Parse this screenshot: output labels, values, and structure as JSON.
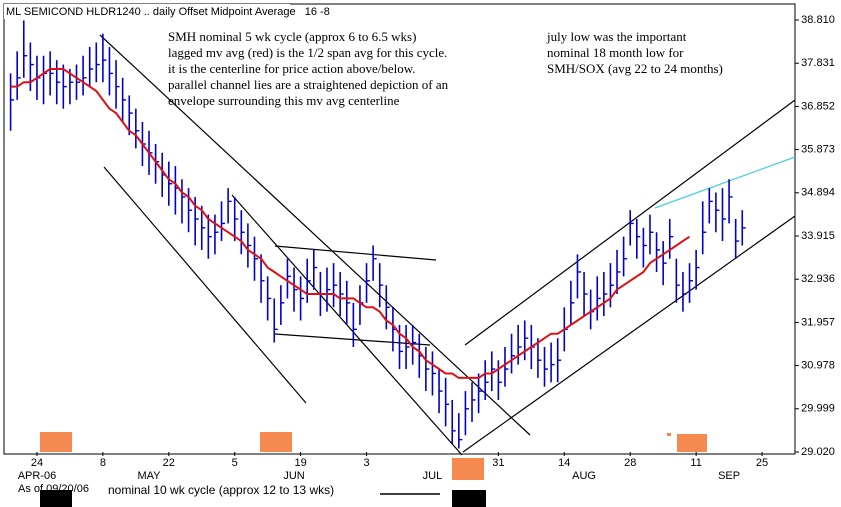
{
  "chart_data": {
    "type": "ohlc",
    "title": "ML SEMICOND HLDR1240 .. daily Offset Midpoint Average   16 -8",
    "annotations": [
      [
        "SMH nominal 5 wk cycle (approx 6 to 6.5 wks)",
        "lagged mv avg (red) is the 1/2 span avg for this cycle.",
        "it is the centerline for price action above/below.",
        "parallel channel lies are a straightened depiction of an",
        "envelope surrounding this mv avg centerline"
      ],
      [
        "july low was the important",
        "nominal 18 month low for",
        "SMH/SOX (avg 22 to 24 months)"
      ]
    ],
    "footer": {
      "as_of": "As of 09/20/06",
      "cycle_note": "nominal 10 wk cycle (approx 12 to 13 wks)"
    },
    "xlim": [
      -1,
      119
    ],
    "xticks": [
      {
        "value": 4,
        "label": "24"
      },
      {
        "value": 14,
        "label": "8"
      },
      {
        "value": 24,
        "label": "22"
      },
      {
        "value": 34,
        "label": "5"
      },
      {
        "value": 44,
        "label": "19"
      },
      {
        "value": 54,
        "label": "3"
      },
      {
        "value": 74,
        "label": "31"
      },
      {
        "value": 84,
        "label": "14"
      },
      {
        "value": 94,
        "label": "28"
      },
      {
        "value": 104,
        "label": "11"
      },
      {
        "value": 114,
        "label": "25"
      }
    ],
    "month_labels": [
      {
        "value": 4,
        "label": "APR-06"
      },
      {
        "value": 21,
        "label": "MAY"
      },
      {
        "value": 43,
        "label": "JUN"
      },
      {
        "value": 64,
        "label": "JUL"
      },
      {
        "value": 87,
        "label": "AUG"
      },
      {
        "value": 109,
        "label": "SEP"
      }
    ],
    "ylim": [
      29.02,
      38.81
    ],
    "yticks": [
      {
        "value": 38.81,
        "label": "38.810"
      },
      37.831,
      36.852,
      35.873,
      34.894,
      33.915,
      32.936,
      31.957,
      30.978,
      29.999,
      {
        "value": 29.02,
        "label": "29.020"
      }
    ],
    "price_color": "#0000c8",
    "high": [
      37.6,
      38.1,
      38.8,
      38.3,
      38.0,
      38.0,
      38.1,
      37.9,
      37.8,
      37.7,
      37.8,
      38.0,
      38.2,
      38.3,
      38.5,
      38.2,
      37.9,
      37.5,
      37.1,
      36.8,
      36.5,
      36.3,
      36.0,
      35.8,
      35.6,
      35.5,
      35.2,
      35.0,
      34.8,
      34.6,
      34.4,
      34.4,
      34.7,
      35.0,
      34.8,
      34.5,
      34.2,
      33.9,
      33.5,
      33.0,
      32.5,
      32.8,
      33.4,
      33.2,
      33.0,
      33.4,
      33.6,
      33.1,
      33.2,
      33.3,
      33.1,
      32.9,
      32.4,
      32.8,
      33.3,
      33.7,
      33.3,
      32.8,
      32.3,
      31.9,
      31.9,
      31.9,
      31.7,
      31.4,
      31.3,
      30.9,
      30.7,
      30.2,
      29.9,
      30.4,
      30.6,
      30.8,
      31.1,
      31.3,
      31.1,
      31.4,
      31.7,
      31.9,
      32.0,
      31.9,
      31.6,
      31.4,
      31.5,
      31.6,
      32.3,
      32.9,
      33.5,
      33.1,
      32.7,
      33.0,
      33.1,
      33.3,
      33.6,
      33.9,
      34.5,
      34.3,
      34.1,
      34.4,
      34.0,
      33.8,
      34.3,
      33.4,
      33.1,
      33.3,
      33.6,
      34.7,
      35.0,
      34.9,
      35.0,
      35.2,
      34.3,
      34.5
    ],
    "low": [
      36.3,
      37.0,
      37.5,
      37.2,
      37.0,
      36.9,
      37.1,
      36.9,
      36.8,
      36.9,
      37.0,
      37.1,
      37.3,
      37.4,
      37.4,
      37.1,
      36.8,
      36.5,
      36.2,
      35.9,
      35.5,
      35.3,
      35.1,
      34.8,
      34.6,
      34.4,
      34.2,
      34.0,
      33.7,
      33.6,
      33.4,
      33.5,
      33.8,
      34.2,
      33.8,
      33.5,
      33.2,
      32.9,
      32.4,
      32.0,
      31.5,
      31.9,
      32.5,
      32.2,
      32.0,
      32.4,
      32.7,
      32.1,
      32.2,
      32.3,
      32.1,
      31.9,
      31.4,
      31.9,
      32.4,
      32.9,
      32.3,
      31.8,
      31.3,
      30.9,
      30.9,
      31.0,
      30.7,
      30.4,
      30.3,
      29.9,
      29.6,
      29.2,
      29.1,
      29.4,
      29.7,
      29.9,
      30.2,
      30.4,
      30.2,
      30.5,
      30.8,
      31.0,
      31.1,
      30.9,
      30.7,
      30.5,
      30.6,
      30.6,
      31.3,
      31.9,
      32.5,
      32.1,
      31.8,
      32.0,
      32.1,
      32.3,
      32.6,
      33.0,
      33.7,
      33.4,
      33.2,
      33.5,
      33.1,
      32.8,
      33.4,
      32.4,
      32.2,
      32.4,
      32.7,
      33.5,
      34.2,
      34.0,
      33.8,
      34.2,
      33.4,
      33.7
    ],
    "close": [
      37.0,
      37.5,
      38.0,
      37.8,
      37.5,
      37.6,
      37.6,
      37.4,
      37.3,
      37.4,
      37.4,
      37.5,
      37.7,
      37.8,
      37.9,
      37.6,
      37.3,
      37.0,
      36.7,
      36.3,
      36.0,
      35.8,
      35.6,
      35.3,
      35.1,
      35.0,
      34.8,
      34.5,
      34.3,
      34.1,
      33.9,
      34.0,
      34.2,
      34.7,
      34.3,
      34.0,
      33.7,
      33.4,
      32.9,
      32.5,
      31.8,
      32.4,
      33.0,
      32.7,
      32.5,
      32.9,
      33.2,
      32.6,
      32.7,
      32.8,
      32.6,
      32.4,
      31.8,
      32.4,
      32.9,
      33.4,
      32.8,
      32.3,
      31.8,
      31.3,
      31.4,
      31.5,
      31.2,
      30.9,
      30.8,
      30.4,
      30.1,
      29.5,
      29.3,
      30.0,
      30.2,
      30.4,
      30.6,
      30.9,
      30.6,
      30.9,
      31.2,
      31.4,
      31.6,
      31.4,
      31.1,
      30.9,
      31.0,
      31.1,
      31.8,
      32.4,
      33.1,
      32.6,
      32.2,
      32.5,
      32.6,
      32.8,
      33.1,
      33.4,
      34.2,
      33.9,
      33.7,
      34.0,
      33.6,
      33.3,
      33.9,
      32.8,
      32.6,
      32.9,
      33.2,
      34.0,
      34.7,
      34.5,
      34.3,
      34.8,
      33.8,
      34.1
    ],
    "ma_color": "#e01010",
    "ma": [
      37.3,
      37.3,
      37.4,
      37.4,
      37.5,
      37.6,
      37.7,
      37.7,
      37.7,
      37.6,
      37.5,
      37.4,
      37.3,
      37.2,
      37.0,
      36.8,
      36.7,
      36.5,
      36.3,
      36.2,
      36.0,
      35.8,
      35.6,
      35.4,
      35.2,
      35.1,
      34.9,
      34.8,
      34.6,
      34.5,
      34.3,
      34.2,
      34.1,
      34.0,
      33.9,
      33.8,
      33.6,
      33.5,
      33.4,
      33.2,
      33.1,
      33.0,
      32.9,
      32.8,
      32.7,
      32.6,
      32.6,
      32.6,
      32.6,
      32.6,
      32.5,
      32.5,
      32.5,
      32.4,
      32.3,
      32.3,
      32.2,
      32.0,
      31.9,
      31.7,
      31.6,
      31.4,
      31.3,
      31.1,
      31.0,
      30.9,
      30.8,
      30.8,
      30.7,
      30.7,
      30.7,
      30.7,
      30.8,
      30.8,
      30.9,
      31.0,
      31.1,
      31.2,
      31.3,
      31.4,
      31.5,
      31.6,
      31.7,
      31.7,
      31.8,
      31.9,
      32.0,
      32.1,
      32.2,
      32.3,
      32.4,
      32.5,
      32.7,
      32.8,
      32.9,
      33.0,
      33.1,
      33.3,
      33.4,
      33.5,
      33.6,
      33.7,
      33.8,
      33.9,
      null,
      null,
      null,
      null,
      null,
      null,
      null,
      null
    ]
  }
}
